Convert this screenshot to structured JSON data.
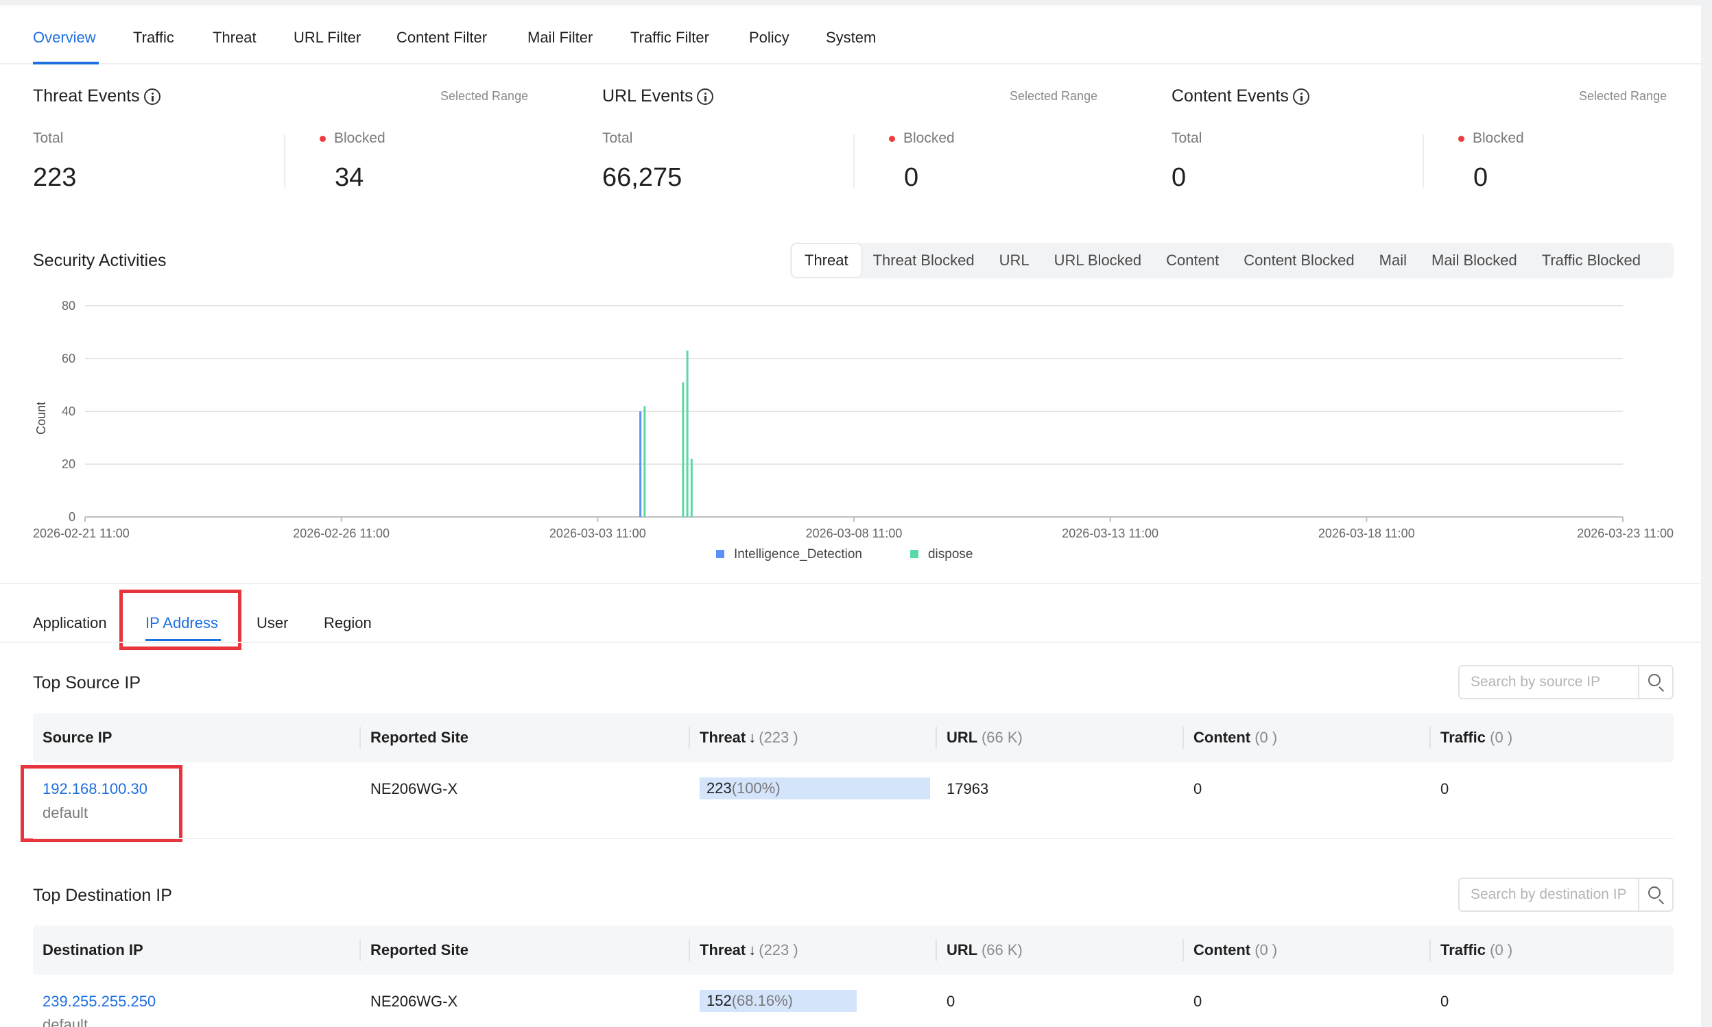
{
  "nav": {
    "tabs": [
      "Overview",
      "Traffic",
      "Threat",
      "URL Filter",
      "Content Filter",
      "Mail Filter",
      "Traffic Filter",
      "Policy",
      "System"
    ],
    "active": "Overview"
  },
  "cards": [
    {
      "title": "Threat Events",
      "range": "Selected Range",
      "total_label": "Total",
      "total": "223",
      "blocked_label": "Blocked",
      "blocked": "34"
    },
    {
      "title": "URL Events",
      "range": "Selected Range",
      "total_label": "Total",
      "total": "66,275",
      "blocked_label": "Blocked",
      "blocked": "0"
    },
    {
      "title": "Content Events",
      "range": "Selected Range",
      "total_label": "Total",
      "total": "0",
      "blocked_label": "Blocked",
      "blocked": "0"
    }
  ],
  "security": {
    "title": "Security Activities",
    "segments": [
      "Threat",
      "Threat Blocked",
      "URL",
      "URL Blocked",
      "Content",
      "Content Blocked",
      "Mail",
      "Mail Blocked",
      "Traffic Blocked"
    ],
    "active_segment": "Threat"
  },
  "chart_data": {
    "type": "bar",
    "ylabel": "Count",
    "ylim": [
      0,
      80
    ],
    "yticks": [
      "0",
      "20",
      "40",
      "60",
      "80"
    ],
    "xlim": [
      "2026-02-21 11:00",
      "2026-03-23 11:00"
    ],
    "xticks": [
      "2026-02-21 11:00",
      "2026-02-26 11:00",
      "2026-03-03 11:00",
      "2026-03-08 11:00",
      "2026-03-13 11:00",
      "2026-03-18 11:00",
      "2026-03-23 11:00"
    ],
    "grid": true,
    "legend": "bottom-center",
    "series": [
      {
        "name": "Intelligence_Detection",
        "color": "#5b8ff9",
        "points": [
          {
            "x": "2026-03-04 07:00",
            "y": 40
          }
        ]
      },
      {
        "name": "dispose",
        "color": "#5ad8a6",
        "points": [
          {
            "x": "2026-03-04 09:00",
            "y": 42
          },
          {
            "x": "2026-03-05 03:00",
            "y": 51
          },
          {
            "x": "2026-03-05 05:00",
            "y": 63
          },
          {
            "x": "2026-03-05 07:00",
            "y": 22
          }
        ]
      }
    ]
  },
  "subtabs": {
    "items": [
      "Application",
      "IP Address",
      "User",
      "Region"
    ],
    "active": "IP Address"
  },
  "source_table": {
    "title": "Top Source IP",
    "search_placeholder": "Search by source IP",
    "headers": {
      "ip": "Source IP",
      "site": "Reported Site",
      "threat": "Threat",
      "threat_count": "(223 )",
      "url": "URL",
      "url_count": "(66 K)",
      "content": "Content",
      "content_count": "(0 )",
      "traffic": "Traffic",
      "traffic_count": "(0 )"
    },
    "rows": [
      {
        "ip": "192.168.100.30",
        "vsys": "default",
        "site": "NE206WG-X",
        "threat": "223",
        "threat_pct": "(100%)",
        "threat_fraction": 1.0,
        "url": "17963",
        "content": "0",
        "traffic": "0"
      }
    ]
  },
  "dest_table": {
    "title": "Top Destination IP",
    "search_placeholder": "Search by destination IP",
    "headers": {
      "ip": "Destination IP",
      "site": "Reported Site",
      "threat": "Threat",
      "threat_count": "(223 )",
      "url": "URL",
      "url_count": "(66 K)",
      "content": "Content",
      "content_count": "(0 )",
      "traffic": "Traffic",
      "traffic_count": "(0 )"
    },
    "rows": [
      {
        "ip": "239.255.255.250",
        "vsys": "default",
        "site": "NE206WG-X",
        "threat": "152",
        "threat_pct": "(68.16%)",
        "threat_fraction": 0.6816,
        "url": "0",
        "content": "0",
        "traffic": "0"
      }
    ]
  }
}
